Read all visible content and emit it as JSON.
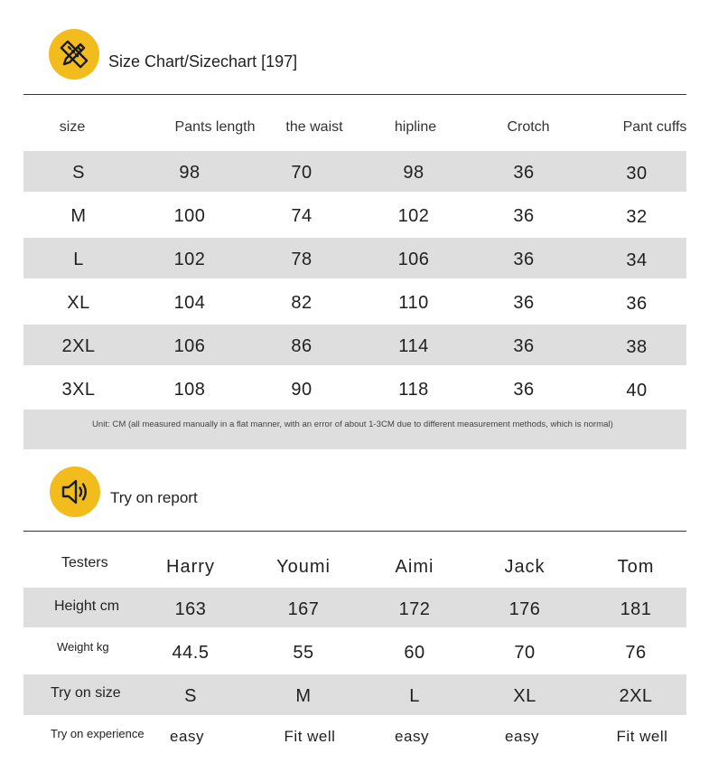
{
  "size_chart": {
    "icon": "ruler-pencil-icon",
    "title": "Size Chart/Sizechart [197]",
    "headers": [
      "size",
      "Pants length",
      "the waist",
      "hipline",
      "Crotch",
      "Pant cuffs"
    ],
    "rows": [
      [
        "S",
        "98",
        "70",
        "98",
        "36",
        "30"
      ],
      [
        "M",
        "100",
        "74",
        "102",
        "36",
        "32"
      ],
      [
        "L",
        "102",
        "78",
        "106",
        "36",
        "34"
      ],
      [
        "XL",
        "104",
        "82",
        "110",
        "36",
        "36"
      ],
      [
        "2XL",
        "106",
        "86",
        "114",
        "36",
        "38"
      ],
      [
        "3XL",
        "108",
        "90",
        "118",
        "36",
        "40"
      ]
    ],
    "note": "Unit: CM (all measured manually in a flat manner, with an error of about 1-3CM due to different measurement methods, which is normal)"
  },
  "try_on": {
    "icon": "speaker-icon",
    "title": "Try on report",
    "header_label": "Testers",
    "testers": [
      "Harry",
      "Youmi",
      "Aimi",
      "Jack",
      "Tom"
    ],
    "rows": [
      {
        "label": "Height cm",
        "values": [
          "163",
          "167",
          "172",
          "176",
          "181"
        ]
      },
      {
        "label": "Weight kg",
        "values": [
          "44.5",
          "55",
          "60",
          "70",
          "76"
        ]
      },
      {
        "label": "Try on size",
        "values": [
          "S",
          "M",
          "L",
          "XL",
          "2XL"
        ]
      },
      {
        "label": "Try on experience",
        "values": [
          "easy",
          "Fit well",
          "easy",
          "easy",
          "Fit well"
        ]
      }
    ]
  },
  "colors": {
    "accent": "#f2bd1c",
    "band": "#dedede",
    "text": "#1a1a1a"
  }
}
